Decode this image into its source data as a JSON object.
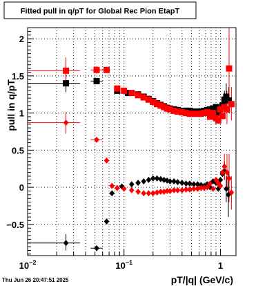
{
  "title": "Fitted pull in q/pT for Global Rec Pion EtapT",
  "timestamp": "Thu Jun 26 20:47:51 2025",
  "chart_data": {
    "type": "scatter",
    "title": "Fitted pull in q/pT for Global Rec Pion EtapT",
    "xlabel": "pT/|q| (GeV/c)",
    "ylabel": "pull in q/pT",
    "xscale": "log",
    "xlim": [
      0.01,
      1.45
    ],
    "ylim": [
      -0.92,
      2.15
    ],
    "grid": true,
    "legend": "none",
    "x_ticks": [
      {
        "value": 0.01,
        "base": "10",
        "exp": "−2"
      },
      {
        "value": 0.1,
        "base": "10",
        "exp": "−1"
      },
      {
        "value": 1,
        "base": "1",
        "exp": ""
      }
    ],
    "y_ticks": [
      {
        "value": 2,
        "label": "2"
      },
      {
        "value": 1.5,
        "label": "1.5"
      },
      {
        "value": 1,
        "label": "1"
      },
      {
        "value": 0.5,
        "label": "0.5"
      },
      {
        "value": 0,
        "label": "0"
      },
      {
        "value": -0.5,
        "label": "−0.5"
      }
    ],
    "series": [
      {
        "color": "#000000",
        "marker": "square",
        "points": [
          {
            "x": 0.025,
            "y": 1.4,
            "xlo": 0.01,
            "xhi": 0.035,
            "ylo": 1.28,
            "yhi": 1.52
          },
          {
            "x": 0.052,
            "y": 1.43,
            "xlo": 0.045,
            "xhi": 0.06,
            "ylo": 1.4,
            "yhi": 1.46
          },
          {
            "x": 0.085,
            "y": 1.3
          },
          {
            "x": 0.11,
            "y": 1.27
          },
          {
            "x": 0.14,
            "y": 1.25
          },
          {
            "x": 0.16,
            "y": 1.22
          },
          {
            "x": 0.18,
            "y": 1.19
          },
          {
            "x": 0.2,
            "y": 1.16
          },
          {
            "x": 0.22,
            "y": 1.13
          },
          {
            "x": 0.24,
            "y": 1.11
          },
          {
            "x": 0.26,
            "y": 1.09
          },
          {
            "x": 0.28,
            "y": 1.07
          },
          {
            "x": 0.3,
            "y": 1.06
          },
          {
            "x": 0.33,
            "y": 1.05
          },
          {
            "x": 0.36,
            "y": 1.04
          },
          {
            "x": 0.4,
            "y": 1.03
          },
          {
            "x": 0.44,
            "y": 1.03
          },
          {
            "x": 0.48,
            "y": 1.03
          },
          {
            "x": 0.53,
            "y": 1.02
          },
          {
            "x": 0.58,
            "y": 1.02
          },
          {
            "x": 0.63,
            "y": 1.02
          },
          {
            "x": 0.68,
            "y": 1.03
          },
          {
            "x": 0.73,
            "y": 1.04
          },
          {
            "x": 0.78,
            "y": 1.05
          },
          {
            "x": 0.84,
            "y": 1.06
          },
          {
            "x": 0.9,
            "y": 1.08
          },
          {
            "x": 0.95,
            "y": 1.0
          },
          {
            "x": 1.0,
            "y": 1.05
          },
          {
            "x": 1.05,
            "y": 1.1
          },
          {
            "x": 1.1,
            "y": 1.18,
            "ylo": 1.1,
            "yhi": 1.3
          },
          {
            "x": 1.15,
            "y": 1.22,
            "ylo": 1.05,
            "yhi": 1.4
          },
          {
            "x": 1.22,
            "y": 1.17,
            "ylo": 1.0,
            "yhi": 1.35
          }
        ]
      },
      {
        "color": "#ff0000",
        "marker": "square",
        "points": [
          {
            "x": 0.025,
            "y": 1.57,
            "xlo": 0.01,
            "xhi": 0.035,
            "ylo": 1.4,
            "yhi": 1.75
          },
          {
            "x": 0.052,
            "y": 1.58,
            "xlo": 0.045,
            "xhi": 0.06,
            "ylo": 1.53,
            "yhi": 1.63
          },
          {
            "x": 0.066,
            "y": 1.58,
            "xlo": 0.06,
            "xhi": 0.072
          },
          {
            "x": 0.085,
            "y": 1.33
          },
          {
            "x": 0.1,
            "y": 1.3
          },
          {
            "x": 0.12,
            "y": 1.27
          },
          {
            "x": 0.14,
            "y": 1.24
          },
          {
            "x": 0.16,
            "y": 1.21
          },
          {
            "x": 0.18,
            "y": 1.18
          },
          {
            "x": 0.2,
            "y": 1.15
          },
          {
            "x": 0.22,
            "y": 1.12
          },
          {
            "x": 0.24,
            "y": 1.1
          },
          {
            "x": 0.26,
            "y": 1.08
          },
          {
            "x": 0.28,
            "y": 1.06
          },
          {
            "x": 0.3,
            "y": 1.05
          },
          {
            "x": 0.33,
            "y": 1.03
          },
          {
            "x": 0.36,
            "y": 1.02
          },
          {
            "x": 0.4,
            "y": 1.01
          },
          {
            "x": 0.44,
            "y": 1.0
          },
          {
            "x": 0.48,
            "y": 0.99
          },
          {
            "x": 0.53,
            "y": 0.99
          },
          {
            "x": 0.58,
            "y": 0.99
          },
          {
            "x": 0.63,
            "y": 0.99
          },
          {
            "x": 0.68,
            "y": 1.0
          },
          {
            "x": 0.73,
            "y": 1.01
          },
          {
            "x": 0.78,
            "y": 0.95
          },
          {
            "x": 0.84,
            "y": 1.0
          },
          {
            "x": 0.9,
            "y": 0.93
          },
          {
            "x": 0.95,
            "y": 0.9
          },
          {
            "x": 1.0,
            "y": 1.05
          },
          {
            "x": 1.05,
            "y": 0.96
          },
          {
            "x": 1.1,
            "y": 1.08,
            "ylo": 0.95,
            "yhi": 1.25
          },
          {
            "x": 1.17,
            "y": 1.05,
            "ylo": 0.85,
            "yhi": 1.3
          },
          {
            "x": 1.23,
            "y": 1.6,
            "ylo": 1.0,
            "yhi": 2.15
          },
          {
            "x": 1.3,
            "y": 1.12,
            "ylo": 0.9,
            "yhi": 1.35
          }
        ]
      },
      {
        "color": "#000000",
        "marker": "diamond",
        "points": [
          {
            "x": 0.025,
            "y": -0.75,
            "xlo": 0.01,
            "xhi": 0.035,
            "ylo": -0.85,
            "yhi": -0.63
          },
          {
            "x": 0.052,
            "y": -0.82,
            "xlo": 0.045,
            "xhi": 0.06,
            "ylo": -0.85,
            "yhi": -0.79
          },
          {
            "x": 0.066,
            "y": -0.46
          },
          {
            "x": 0.075,
            "y": -0.08
          },
          {
            "x": 0.095,
            "y": 0.01
          },
          {
            "x": 0.12,
            "y": 0.04
          },
          {
            "x": 0.14,
            "y": 0.06
          },
          {
            "x": 0.16,
            "y": 0.08
          },
          {
            "x": 0.18,
            "y": 0.1
          },
          {
            "x": 0.2,
            "y": 0.12
          },
          {
            "x": 0.22,
            "y": 0.12
          },
          {
            "x": 0.24,
            "y": 0.11
          },
          {
            "x": 0.26,
            "y": 0.1
          },
          {
            "x": 0.28,
            "y": 0.09
          },
          {
            "x": 0.3,
            "y": 0.08
          },
          {
            "x": 0.33,
            "y": 0.08
          },
          {
            "x": 0.36,
            "y": 0.07
          },
          {
            "x": 0.4,
            "y": 0.06
          },
          {
            "x": 0.44,
            "y": 0.05
          },
          {
            "x": 0.48,
            "y": 0.05
          },
          {
            "x": 0.53,
            "y": 0.04
          },
          {
            "x": 0.58,
            "y": 0.04
          },
          {
            "x": 0.63,
            "y": 0.03
          },
          {
            "x": 0.68,
            "y": 0.02
          },
          {
            "x": 0.73,
            "y": 0.04
          },
          {
            "x": 0.78,
            "y": 0.0
          },
          {
            "x": 0.84,
            "y": 0.08
          },
          {
            "x": 0.9,
            "y": 0.06
          },
          {
            "x": 0.95,
            "y": -0.02
          },
          {
            "x": 1.0,
            "y": 0.1
          },
          {
            "x": 1.05,
            "y": 0.18
          },
          {
            "x": 1.1,
            "y": 0.22,
            "ylo": 0.1,
            "yhi": 0.35
          },
          {
            "x": 1.15,
            "y": -0.02,
            "ylo": -0.2,
            "yhi": 0.15
          },
          {
            "x": 1.21,
            "y": -0.1,
            "ylo": -0.4,
            "yhi": 0.2
          }
        ]
      },
      {
        "color": "#ff0000",
        "marker": "diamond",
        "points": [
          {
            "x": 0.025,
            "y": 0.87,
            "xlo": 0.01,
            "xhi": 0.035,
            "ylo": 0.72,
            "yhi": 1.01
          },
          {
            "x": 0.052,
            "y": 0.64,
            "xlo": 0.045,
            "xhi": 0.06,
            "ylo": 0.61,
            "yhi": 0.67
          },
          {
            "x": 0.066,
            "y": 0.36
          },
          {
            "x": 0.075,
            "y": 0.02
          },
          {
            "x": 0.085,
            "y": -0.01
          },
          {
            "x": 0.1,
            "y": -0.02
          },
          {
            "x": 0.12,
            "y": -0.04
          },
          {
            "x": 0.14,
            "y": -0.06
          },
          {
            "x": 0.16,
            "y": -0.08
          },
          {
            "x": 0.18,
            "y": -0.08
          },
          {
            "x": 0.2,
            "y": -0.08
          },
          {
            "x": 0.22,
            "y": -0.07
          },
          {
            "x": 0.24,
            "y": -0.06
          },
          {
            "x": 0.26,
            "y": -0.06
          },
          {
            "x": 0.28,
            "y": -0.05
          },
          {
            "x": 0.3,
            "y": -0.05
          },
          {
            "x": 0.33,
            "y": -0.04
          },
          {
            "x": 0.36,
            "y": -0.04
          },
          {
            "x": 0.4,
            "y": -0.04
          },
          {
            "x": 0.44,
            "y": -0.03
          },
          {
            "x": 0.48,
            "y": -0.03
          },
          {
            "x": 0.53,
            "y": -0.02
          },
          {
            "x": 0.58,
            "y": -0.02
          },
          {
            "x": 0.63,
            "y": -0.01
          },
          {
            "x": 0.68,
            "y": -0.01
          },
          {
            "x": 0.73,
            "y": 0.0
          },
          {
            "x": 0.78,
            "y": 0.05
          },
          {
            "x": 0.84,
            "y": -0.02
          },
          {
            "x": 0.9,
            "y": 0.1
          },
          {
            "x": 0.95,
            "y": 0.05
          },
          {
            "x": 1.0,
            "y": 0.02
          },
          {
            "x": 1.05,
            "y": 0.2
          },
          {
            "x": 1.1,
            "y": 0.28,
            "ylo": 0.1,
            "yhi": 0.45
          },
          {
            "x": 1.17,
            "y": 0.2,
            "ylo": -0.05,
            "yhi": 0.45
          },
          {
            "x": 1.23,
            "y": 0.12,
            "ylo": -0.2,
            "yhi": 0.45
          },
          {
            "x": 1.3,
            "y": -0.07,
            "ylo": -0.3,
            "yhi": 0.15
          }
        ]
      }
    ]
  }
}
